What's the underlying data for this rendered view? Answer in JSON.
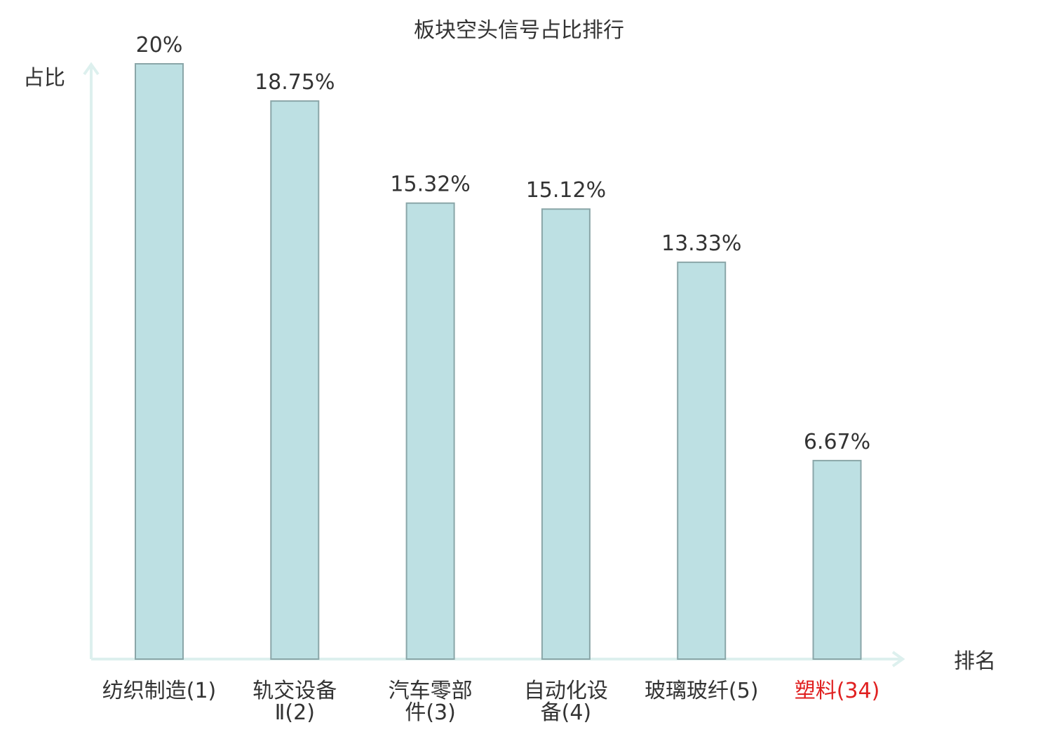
{
  "chart_data": {
    "type": "bar",
    "title": "板块空头信号占比排行",
    "xlabel": "排名",
    "ylabel": "占比",
    "categories": [
      [
        "纺织制造",
        "(1)"
      ],
      [
        "轨交设备",
        "Ⅱ(2)"
      ],
      [
        "汽车零部",
        "件(3)"
      ],
      [
        "自动化设",
        "备(4)"
      ],
      [
        "玻璃玻纤",
        "(5)"
      ],
      [
        "塑料",
        "(34)"
      ]
    ],
    "category_highlight": [
      false,
      false,
      false,
      false,
      false,
      true
    ],
    "values": [
      20,
      18.75,
      15.32,
      15.12,
      13.33,
      6.67
    ],
    "value_labels": [
      "20%",
      "18.75%",
      "15.32%",
      "15.12%",
      "13.33%",
      "6.67%"
    ],
    "ylim": [
      0,
      20
    ],
    "grid": false,
    "legend": "none",
    "colors": {
      "bar_fill": "#bde0e3",
      "bar_stroke": "#8aa6a8",
      "axis": "#ddf0ee",
      "text": "#333333",
      "highlight": "#e02020"
    }
  }
}
